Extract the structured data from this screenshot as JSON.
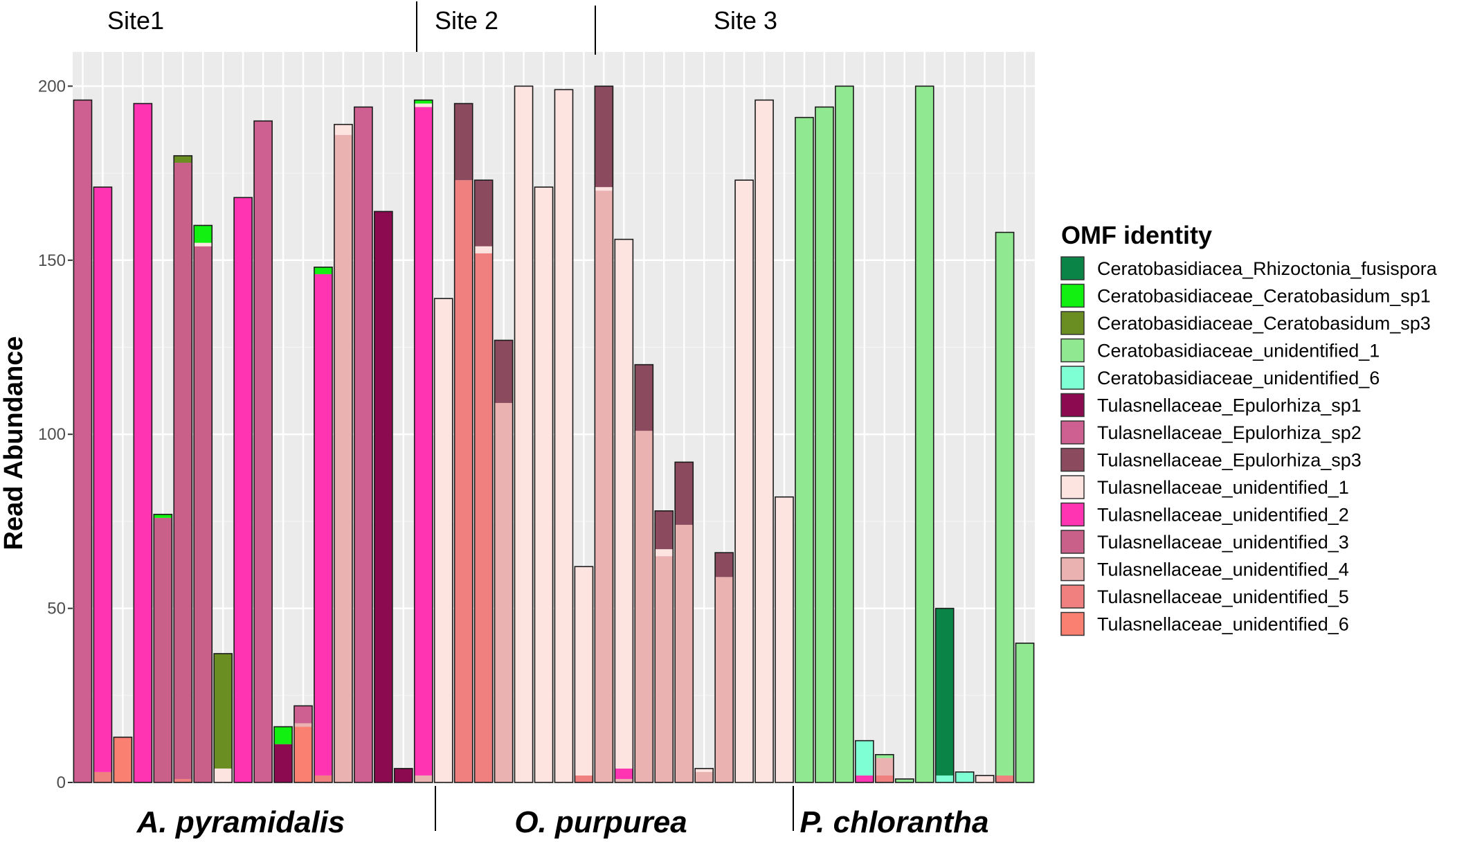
{
  "chart_data": {
    "type": "bar",
    "stacked": true,
    "title": "",
    "xlabel": "",
    "ylabel": "Read Abundance",
    "ylim": [
      0,
      210
    ],
    "yticks": [
      0,
      50,
      100,
      150,
      200
    ],
    "grid": true,
    "legend": {
      "title": "OMF identity",
      "position": "right"
    },
    "sites": [
      "Site1",
      "Site 2",
      "Site 3"
    ],
    "species_groups": [
      "A. pyramidalis",
      "O. purpurea",
      "P. chlorantha"
    ],
    "series": [
      {
        "name": "Ceratobasidiacea_Rhizoctonia_fusispora",
        "color": "#0a8547"
      },
      {
        "name": "Ceratobasidiaceae_Ceratobasidum_sp1",
        "color": "#12f012"
      },
      {
        "name": "Ceratobasidiaceae_Ceratobasidum_sp3",
        "color": "#6b8e23"
      },
      {
        "name": "Ceratobasidiaceae_unidentified_1",
        "color": "#90e890"
      },
      {
        "name": "Ceratobasidiaceae_unidentified_6",
        "color": "#7fffd4"
      },
      {
        "name": "Tulasnellaceae_Epulorhiza_sp1",
        "color": "#8b0a50"
      },
      {
        "name": "Tulasnellaceae_Epulorhiza_sp2",
        "color": "#cd6090"
      },
      {
        "name": "Tulasnellaceae_Epulorhiza_sp3",
        "color": "#8b4a5e"
      },
      {
        "name": "Tulasnellaceae_unidentified_1",
        "color": "#fde4e1"
      },
      {
        "name": "Tulasnellaceae_unidentified_2",
        "color": "#ff34b3"
      },
      {
        "name": "Tulasnellaceae_unidentified_3",
        "color": "#c8608a"
      },
      {
        "name": "Tulasnellaceae_unidentified_4",
        "color": "#ebb2b2"
      },
      {
        "name": "Tulasnellaceae_unidentified_5",
        "color": "#f08080"
      },
      {
        "name": "Tulasnellaceae_unidentified_6",
        "color": "#fa8072"
      }
    ],
    "bars": [
      [
        [
          6,
          196
        ]
      ],
      [
        [
          12,
          3
        ],
        [
          9,
          168
        ]
      ],
      [
        [
          13,
          13
        ]
      ],
      [
        [
          9,
          195
        ]
      ],
      [
        [
          10,
          76
        ],
        [
          1,
          1
        ]
      ],
      [
        [
          12,
          1
        ],
        [
          10,
          177
        ],
        [
          2,
          2
        ]
      ],
      [
        [
          10,
          154
        ],
        [
          8,
          1
        ],
        [
          1,
          5
        ]
      ],
      [
        [
          8,
          4
        ],
        [
          2,
          33
        ]
      ],
      [
        [
          9,
          168
        ]
      ],
      [
        [
          6,
          190
        ]
      ],
      [
        [
          5,
          11
        ],
        [
          1,
          5
        ]
      ],
      [
        [
          13,
          16
        ],
        [
          11,
          1
        ],
        [
          6,
          5
        ]
      ],
      [
        [
          12,
          2
        ],
        [
          9,
          144
        ],
        [
          1,
          2
        ]
      ],
      [
        [
          11,
          186
        ],
        [
          8,
          3
        ]
      ],
      [
        [
          6,
          194
        ]
      ],
      [
        [
          5,
          164
        ]
      ],
      [
        [
          5,
          4
        ]
      ],
      [
        [
          11,
          2
        ],
        [
          9,
          192
        ],
        [
          8,
          1
        ],
        [
          1,
          1
        ]
      ],
      [
        [
          8,
          139
        ]
      ],
      [
        [
          12,
          173
        ],
        [
          7,
          22
        ]
      ],
      [
        [
          12,
          152
        ],
        [
          8,
          2
        ],
        [
          7,
          19
        ]
      ],
      [
        [
          11,
          109
        ],
        [
          7,
          18
        ]
      ],
      [
        [
          8,
          200
        ]
      ],
      [
        [
          8,
          171
        ]
      ],
      [
        [
          8,
          199
        ]
      ],
      [
        [
          12,
          2
        ],
        [
          8,
          60
        ]
      ],
      [
        [
          11,
          170
        ],
        [
          8,
          1
        ],
        [
          7,
          29
        ]
      ],
      [
        [
          11,
          1
        ],
        [
          9,
          3
        ],
        [
          8,
          152
        ]
      ],
      [
        [
          11,
          101
        ],
        [
          7,
          19
        ]
      ],
      [
        [
          11,
          65
        ],
        [
          8,
          2
        ],
        [
          7,
          11
        ]
      ],
      [
        [
          11,
          74
        ],
        [
          7,
          18
        ]
      ],
      [
        [
          11,
          3
        ],
        [
          8,
          1
        ]
      ],
      [
        [
          11,
          59
        ],
        [
          7,
          7
        ]
      ],
      [
        [
          8,
          173
        ]
      ],
      [
        [
          8,
          196
        ]
      ],
      [
        [
          8,
          82
        ]
      ],
      [
        [
          3,
          191
        ]
      ],
      [
        [
          3,
          194
        ]
      ],
      [
        [
          3,
          200
        ]
      ],
      [
        [
          9,
          2
        ],
        [
          4,
          10
        ]
      ],
      [
        [
          12,
          2
        ],
        [
          11,
          5
        ],
        [
          3,
          1
        ]
      ],
      [
        [
          3,
          1
        ]
      ],
      [
        [
          3,
          200
        ]
      ],
      [
        [
          4,
          2
        ],
        [
          0,
          48
        ]
      ],
      [
        [
          4,
          3
        ]
      ],
      [
        [
          8,
          2
        ]
      ],
      [
        [
          12,
          2
        ],
        [
          3,
          156
        ]
      ],
      [
        [
          3,
          40
        ]
      ]
    ]
  }
}
